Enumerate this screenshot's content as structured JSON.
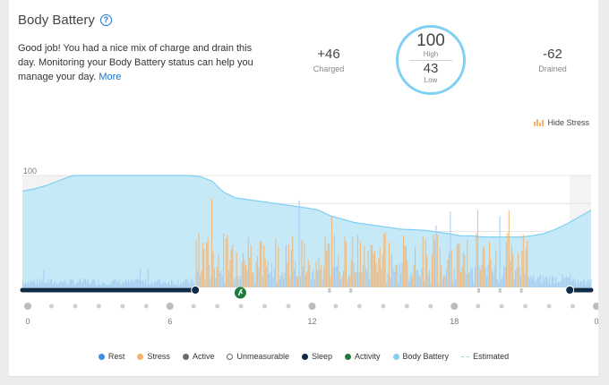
{
  "widget": {
    "title": "Body Battery",
    "summary_text": "Good job! You had a nice mix of charge and drain this day. Monitoring your Body Battery status can help you manage your day.",
    "more_link": "More"
  },
  "stats": {
    "charged_value": "+46",
    "charged_label": "Charged",
    "drained_value": "-62",
    "drained_label": "Drained",
    "high_value": "100",
    "high_label": "High",
    "low_value": "43",
    "low_label": "Low"
  },
  "controls": {
    "hide_stress_label": "Hide Stress"
  },
  "legend": [
    {
      "label": "Rest",
      "color": "#3b8ee0",
      "style": "dot"
    },
    {
      "label": "Stress",
      "color": "#f6b26b",
      "style": "dot"
    },
    {
      "label": "Active",
      "color": "#6b6b6b",
      "style": "dot"
    },
    {
      "label": "Unmeasurable",
      "color": "#ffffff",
      "style": "ring"
    },
    {
      "label": "Sleep",
      "color": "#0f2a44",
      "style": "dot"
    },
    {
      "label": "Activity",
      "color": "#1e7d3c",
      "style": "dot"
    },
    {
      "label": "Body Battery",
      "color": "#7fd0f2",
      "style": "dot"
    },
    {
      "label": "Estimated",
      "color": "#8fd3f4",
      "style": "dash"
    }
  ],
  "chart_data": {
    "type": "area",
    "ylim": [
      0,
      100
    ],
    "yticks": [
      "100",
      "75",
      "50",
      "25"
    ],
    "xlim": [
      0,
      24
    ],
    "xticks": [
      "0",
      "6",
      "12",
      "18",
      "0"
    ],
    "x_tick_hours": [
      0,
      6,
      12,
      18,
      24
    ],
    "series": [
      {
        "name": "Body Battery",
        "x": [
          0,
          0.5,
          1,
          1.5,
          2,
          2.2,
          3,
          4,
          5,
          6,
          7,
          7.5,
          8,
          8.5,
          9,
          10,
          11,
          12,
          12.5,
          13,
          13.5,
          14,
          15,
          16,
          17,
          18,
          18.5,
          19,
          19.5,
          20,
          21,
          21.5,
          22,
          22.5,
          23,
          23.5,
          24
        ],
        "values": [
          86,
          88,
          91,
          95,
          99,
          100,
          100,
          100,
          100,
          100,
          100,
          99,
          95,
          85,
          80,
          77,
          74,
          71,
          69,
          64,
          61,
          58,
          55,
          52,
          51,
          48,
          46,
          46,
          45,
          45,
          45,
          46,
          48,
          52,
          57,
          63,
          69
        ]
      }
    ],
    "sleep_ranges": [
      [
        0,
        7.3
      ],
      [
        23.1,
        24
      ]
    ],
    "activity_marker_hour": 9.2,
    "stress_color": "#f6b26b",
    "rest_color": "#9fc9ee",
    "unmeasurable_color": "#c7c7c7"
  }
}
